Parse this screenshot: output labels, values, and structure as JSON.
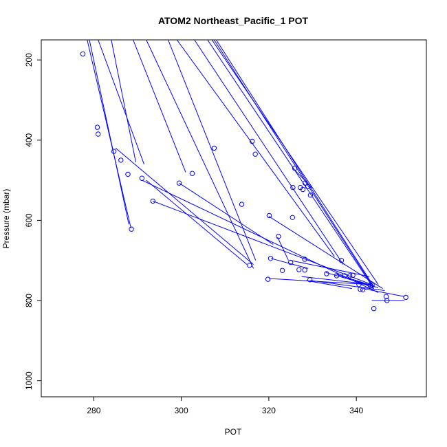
{
  "chart_data": {
    "type": "line",
    "title": "ATOM2 Northeast_Pacific_1 POT",
    "xlabel": "POT",
    "ylabel": "Pressure (mbar)",
    "xlim": [
      268,
      356
    ],
    "ylim": [
      1040,
      150
    ],
    "y_reversed": true,
    "x_ticks": [
      280,
      300,
      320,
      340
    ],
    "y_ticks": [
      200,
      400,
      600,
      800,
      1000
    ],
    "grid": false,
    "legend": "none",
    "color": "#0000ff",
    "segments": [
      {
        "x": [
          281,
          291.5
        ],
        "y": [
          150,
          460
        ]
      },
      {
        "x": [
          284,
          289.6
        ],
        "y": [
          150,
          455
        ]
      },
      {
        "x": [
          289,
          301
        ],
        "y": [
          150,
          480
        ]
      },
      {
        "x": [
          292,
          316.5
        ],
        "y": [
          150,
          720
        ]
      },
      {
        "x": [
          297,
          317
        ],
        "y": [
          150,
          700
        ]
      },
      {
        "x": [
          299,
          335
        ],
        "y": [
          150,
          690
        ]
      },
      {
        "x": [
          303,
          337
        ],
        "y": [
          150,
          710
        ]
      },
      {
        "x": [
          306,
          344
        ],
        "y": [
          150,
          770
        ]
      },
      {
        "x": [
          307,
          345
        ],
        "y": [
          150,
          760
        ]
      },
      {
        "x": [
          307.5,
          343.5
        ],
        "y": [
          150,
          760
        ]
      },
      {
        "x": [
          308,
          344
        ],
        "y": [
          150,
          765
        ]
      },
      {
        "x": [
          292,
          315
        ],
        "y": [
          500,
          710
        ]
      },
      {
        "x": [
          293.5,
          343.5
        ],
        "y": [
          552,
          760
        ]
      },
      {
        "x": [
          291,
          345
        ],
        "y": [
          500,
          780
        ]
      },
      {
        "x": [
          285,
          316.5
        ],
        "y": [
          420,
          710
        ]
      },
      {
        "x": [
          299.5,
          321
        ],
        "y": [
          507,
          660
        ]
      },
      {
        "x": [
          278.5,
          288.5
        ],
        "y": [
          150,
          620
        ]
      },
      {
        "x": [
          279,
          288
        ],
        "y": [
          150,
          610
        ]
      },
      {
        "x": [
          325.5,
          330
        ],
        "y": [
          470,
          520
        ]
      },
      {
        "x": [
          320,
          346
        ],
        "y": [
          590,
          770
        ]
      },
      {
        "x": [
          325,
          343
        ],
        "y": [
          700,
          740
        ]
      },
      {
        "x": [
          327.5,
          343.5
        ],
        "y": [
          740,
          760
        ]
      },
      {
        "x": [
          328.5,
          339
        ],
        "y": [
          750,
          770
        ]
      },
      {
        "x": [
          341.5,
          351
        ],
        "y": [
          770,
          790
        ]
      },
      {
        "x": [
          343.5,
          351
        ],
        "y": [
          800,
          800
        ]
      },
      {
        "x": [
          329.5,
          346.5
        ],
        "y": [
          750,
          775
        ]
      },
      {
        "x": [
          340,
          344
        ],
        "y": [
          750,
          770
        ]
      },
      {
        "x": [
          322,
          324.5
        ],
        "y": [
          642,
          700
        ]
      },
      {
        "x": [
          320.5,
          329
        ],
        "y": [
          695,
          720
        ]
      },
      {
        "x": [
          320,
          343
        ],
        "y": [
          745,
          760
        ]
      },
      {
        "x": [
          333,
          345
        ],
        "y": [
          730,
          768
        ]
      },
      {
        "x": [
          335.5,
          343.5
        ],
        "y": [
          735,
          762
        ]
      }
    ],
    "points": [
      {
        "x": 277.5,
        "y": 185
      },
      {
        "x": 280.8,
        "y": 368
      },
      {
        "x": 281,
        "y": 385
      },
      {
        "x": 284.6,
        "y": 428
      },
      {
        "x": 286.2,
        "y": 450
      },
      {
        "x": 287.8,
        "y": 485
      },
      {
        "x": 288.6,
        "y": 622
      },
      {
        "x": 291,
        "y": 495
      },
      {
        "x": 293.5,
        "y": 552
      },
      {
        "x": 299.5,
        "y": 507
      },
      {
        "x": 302.5,
        "y": 483
      },
      {
        "x": 307.5,
        "y": 420
      },
      {
        "x": 313.8,
        "y": 560
      },
      {
        "x": 315.6,
        "y": 712
      },
      {
        "x": 316.2,
        "y": 403
      },
      {
        "x": 316.9,
        "y": 435
      },
      {
        "x": 319.8,
        "y": 747
      },
      {
        "x": 320.1,
        "y": 588
      },
      {
        "x": 320.4,
        "y": 695
      },
      {
        "x": 322.2,
        "y": 640
      },
      {
        "x": 323.1,
        "y": 725
      },
      {
        "x": 325,
        "y": 705
      },
      {
        "x": 325.4,
        "y": 593
      },
      {
        "x": 325.5,
        "y": 518
      },
      {
        "x": 325.9,
        "y": 470
      },
      {
        "x": 326.9,
        "y": 723
      },
      {
        "x": 327.2,
        "y": 518
      },
      {
        "x": 327.8,
        "y": 523
      },
      {
        "x": 328.2,
        "y": 697
      },
      {
        "x": 328.2,
        "y": 724
      },
      {
        "x": 328.3,
        "y": 507
      },
      {
        "x": 328.9,
        "y": 516
      },
      {
        "x": 329.4,
        "y": 748
      },
      {
        "x": 329.5,
        "y": 537
      },
      {
        "x": 333.2,
        "y": 733
      },
      {
        "x": 335.5,
        "y": 738
      },
      {
        "x": 336.6,
        "y": 700
      },
      {
        "x": 337.3,
        "y": 738
      },
      {
        "x": 338.5,
        "y": 738
      },
      {
        "x": 339.2,
        "y": 737
      },
      {
        "x": 340.6,
        "y": 760
      },
      {
        "x": 340.9,
        "y": 772
      },
      {
        "x": 341.5,
        "y": 773
      },
      {
        "x": 343.2,
        "y": 762
      },
      {
        "x": 343.6,
        "y": 761
      },
      {
        "x": 344,
        "y": 820
      },
      {
        "x": 346.8,
        "y": 790
      },
      {
        "x": 347,
        "y": 800
      },
      {
        "x": 351.3,
        "y": 792
      }
    ]
  }
}
